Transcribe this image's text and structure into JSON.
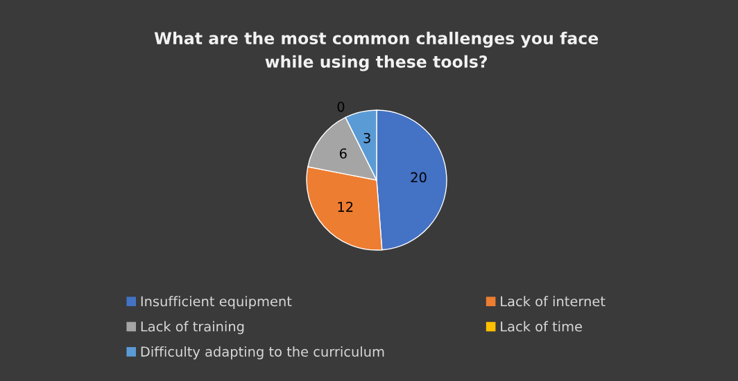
{
  "chart_data": {
    "type": "pie",
    "title": "What are the most common challenges you face\nwhile using these tools?",
    "categories": [
      "Insufficient equipment",
      "Lack of internet",
      "Lack of training",
      "Lack of time",
      "Difficulty adapting to the curriculum"
    ],
    "values": [
      20,
      12,
      6,
      0,
      3
    ],
    "colors": [
      "#4472c4",
      "#ed7d31",
      "#a5a5a5",
      "#ffc000",
      "#5b9bd5"
    ],
    "value_labels": [
      "20",
      "12",
      "6",
      "0",
      "3"
    ],
    "legend": "bottom"
  }
}
